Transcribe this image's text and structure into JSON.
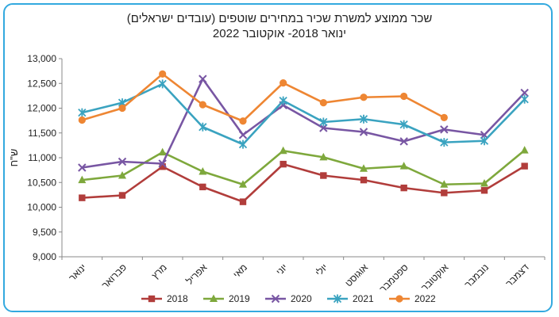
{
  "chart_data": {
    "type": "line",
    "title_line1": "שכר ממוצע למשרת שכיר במחירים שוטפים (עובדים ישראלים)",
    "title_line2": "ינואר 2018- אוקטובר 2022",
    "ylabel": "ש\"ח",
    "xlabel": "",
    "ylim": [
      9000,
      13000
    ],
    "yticks": [
      "9,000",
      "9,500",
      "10,000",
      "10,500",
      "11,000",
      "11,500",
      "12,000",
      "12,500",
      "13,000"
    ],
    "grid": false,
    "legend_position": "bottom",
    "categories": [
      "ינואר",
      "פברואר",
      "מרץ",
      "אפריל",
      "מאי",
      "יוני",
      "יולי",
      "אוגוסט",
      "ספטמבר",
      "אוקטובר",
      "נובמבר",
      "דצמבר"
    ],
    "series": [
      {
        "name": "2018",
        "color": "#b13d3b",
        "marker": "square",
        "values": [
          10190,
          10240,
          10820,
          10410,
          10110,
          10870,
          10640,
          10550,
          10390,
          10290,
          10340,
          10830
        ]
      },
      {
        "name": "2019",
        "color": "#7ea83c",
        "marker": "triangle",
        "values": [
          10550,
          10640,
          11110,
          10720,
          10460,
          11140,
          11010,
          10780,
          10830,
          10460,
          10480,
          11150
        ]
      },
      {
        "name": "2020",
        "color": "#7856a3",
        "marker": "x",
        "values": [
          10800,
          10920,
          10880,
          12590,
          11460,
          12060,
          11600,
          11520,
          11330,
          11570,
          11460,
          12310
        ]
      },
      {
        "name": "2021",
        "color": "#3aa3c0",
        "marker": "star",
        "values": [
          11910,
          12110,
          12490,
          11620,
          11270,
          12150,
          11720,
          11780,
          11670,
          11310,
          11340,
          12180
        ]
      },
      {
        "name": "2022",
        "color": "#ee8633",
        "marker": "circle",
        "values": [
          11760,
          12000,
          12690,
          12070,
          11740,
          12510,
          12110,
          12220,
          12240,
          11810,
          null,
          null
        ]
      }
    ]
  }
}
